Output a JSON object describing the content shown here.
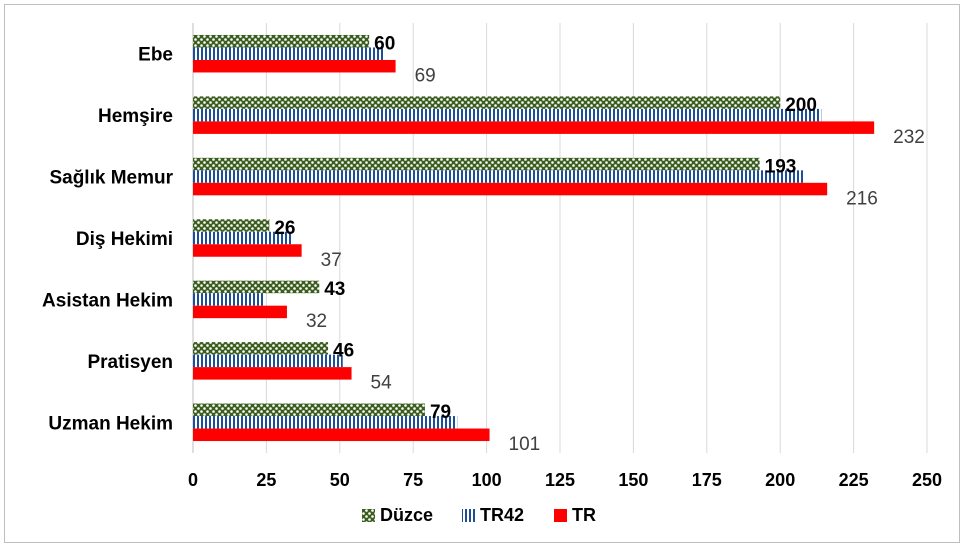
{
  "chart_data": {
    "type": "bar",
    "orientation": "horizontal",
    "categories": [
      "Ebe",
      "Hemşire",
      "Sağlık Memur",
      "Diş Hekimi",
      "Asistan Hekim",
      "Pratisyen",
      "Uzman Hekim"
    ],
    "series": [
      {
        "name": "Düzce",
        "values": [
          60,
          200,
          193,
          26,
          43,
          46,
          79
        ],
        "color": "#3b5e1f",
        "pattern": "dots",
        "labels_shown": true,
        "label_style": "bold"
      },
      {
        "name": "TR42",
        "values": [
          65,
          214,
          208,
          34,
          24,
          51,
          90
        ],
        "color": "#1f4e99",
        "pattern": "vertical-stripes",
        "labels_shown": false
      },
      {
        "name": "TR",
        "values": [
          69,
          232,
          216,
          37,
          32,
          54,
          101
        ],
        "color": "#ff0000",
        "pattern": "solid",
        "labels_shown": true,
        "label_style": "normal"
      }
    ],
    "xlim": [
      0,
      250
    ],
    "xticks": [
      0,
      25,
      50,
      75,
      100,
      125,
      150,
      175,
      200,
      225,
      250
    ],
    "grid": true,
    "legend": "bottom-center"
  }
}
